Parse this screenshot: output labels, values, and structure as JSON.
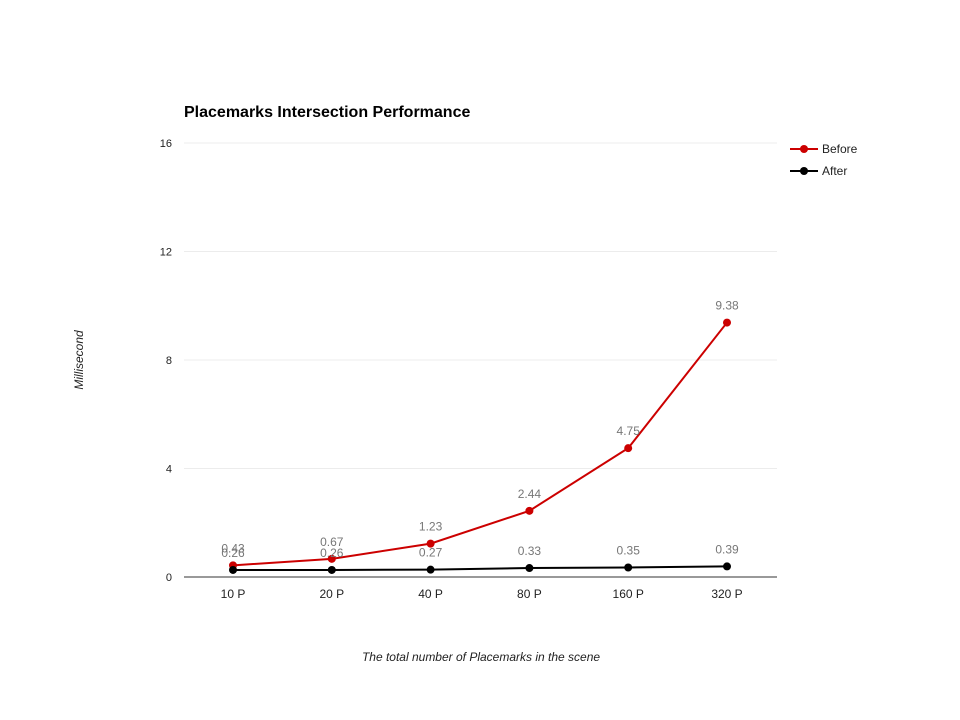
{
  "chart_data": {
    "type": "line",
    "title": "Placemarks Intersection Performance",
    "xlabel": "The total number of Placemarks in the scene",
    "ylabel": "Millisecond",
    "categories": [
      "10 P",
      "20 P",
      "40 P",
      "80 P",
      "160 P",
      "320 P"
    ],
    "ylim": [
      0,
      16
    ],
    "yticks": [
      0,
      4,
      8,
      12,
      16
    ],
    "grid": true,
    "legend_position": "right",
    "series": [
      {
        "name": "Before",
        "color": "#cc0000",
        "values": [
          0.43,
          0.67,
          1.23,
          2.44,
          4.75,
          9.38
        ],
        "labels": [
          "0.43",
          "0.67",
          "1.23",
          "2.44",
          "4.75",
          "9.38"
        ]
      },
      {
        "name": "After",
        "color": "#000000",
        "values": [
          0.26,
          0.26,
          0.27,
          0.33,
          0.35,
          0.39
        ],
        "labels": [
          "0.26",
          "0.26",
          "0.27",
          "0.33",
          "0.35",
          "0.39"
        ]
      }
    ]
  }
}
